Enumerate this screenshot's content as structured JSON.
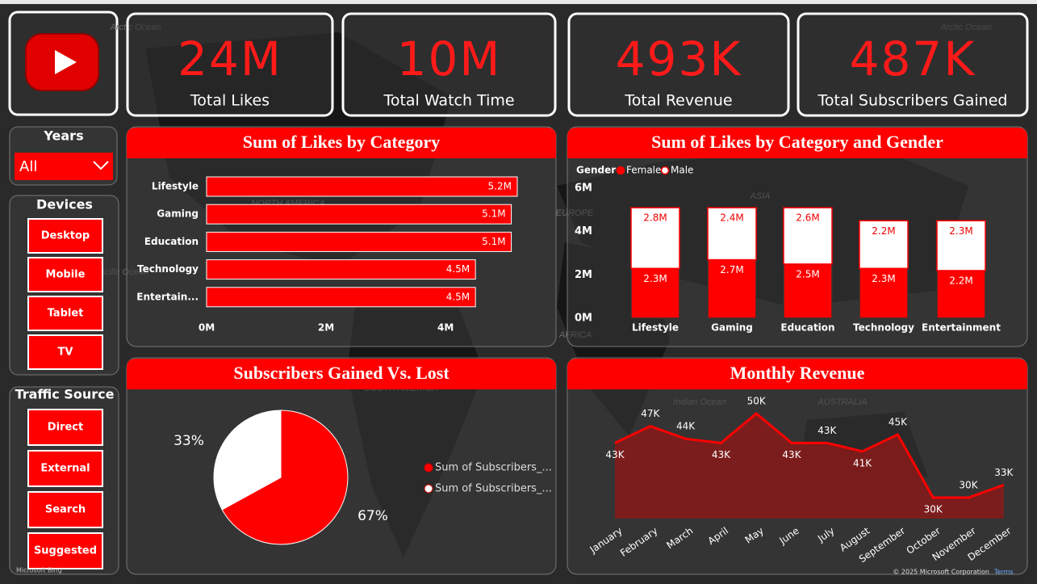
{
  "kpis": [
    {
      "value": "24M",
      "label": "Total Likes"
    },
    {
      "value": "10M",
      "label": "Total Watch Time"
    },
    {
      "value": "493K",
      "label": "Total Revenue"
    },
    {
      "value": "487K",
      "label": "Total Subscribers Gained"
    }
  ],
  "slicers": {
    "years": {
      "title": "Years",
      "selected": "All"
    },
    "devices": {
      "title": "Devices",
      "options": [
        "Desktop",
        "Mobile",
        "Tablet",
        "TV"
      ]
    },
    "traffic_source": {
      "title": "Traffic Source",
      "options": [
        "Direct",
        "External",
        "Search",
        "Suggested"
      ]
    }
  },
  "map_labels": [
    "Arctic Ocean",
    "Arctic Ocean",
    "NORTH AMERICA",
    "Pacific Ocean",
    "EUROPE",
    "ASIA",
    "AFRICA",
    "SOUTH AMERICA",
    "Indian Ocean",
    "AUSTRALIA"
  ],
  "footer": {
    "attribution": "Microsoft Bing",
    "copyright": "© 2025 Microsoft Corporation",
    "terms": "Terms"
  },
  "chart_data": [
    {
      "type": "hbar",
      "title": "Sum of Likes by Category",
      "categories": [
        "Lifestyle",
        "Gaming",
        "Education",
        "Technology",
        "Entertain..."
      ],
      "values": [
        5.2,
        5.1,
        5.1,
        4.5,
        4.5
      ],
      "value_labels": [
        "5.2M",
        "5.1M",
        "5.1M",
        "4.5M",
        "4.5M"
      ],
      "color": "#ff0000",
      "xlim": [
        0,
        5.7
      ],
      "xticks": [
        {
          "value": 0,
          "label": "0M"
        },
        {
          "value": 2,
          "label": "2M"
        },
        {
          "value": 4,
          "label": "4M"
        }
      ]
    },
    {
      "type": "stacked_bar",
      "title": "Sum of Likes by Category and Gender",
      "legend_title": "Gender",
      "categories": [
        "Lifestyle",
        "Gaming",
        "Education",
        "Technology",
        "Entertainment"
      ],
      "series": [
        {
          "name": "Female",
          "color": "#ff0000",
          "values": [
            2.3,
            2.7,
            2.5,
            2.3,
            2.2
          ],
          "value_labels": [
            "2.3M",
            "2.7M",
            "2.5M",
            "2.3M",
            "2.2M"
          ]
        },
        {
          "name": "Male",
          "color": "#ffffff",
          "values": [
            2.8,
            2.4,
            2.6,
            2.2,
            2.3
          ],
          "value_labels": [
            "2.8M",
            "2.4M",
            "2.6M",
            "2.2M",
            "2.3M"
          ]
        }
      ],
      "ylim": [
        0,
        6
      ],
      "yticks": [
        {
          "value": 0,
          "label": "0M"
        },
        {
          "value": 2,
          "label": "2M"
        },
        {
          "value": 4,
          "label": "4M"
        },
        {
          "value": 6,
          "label": "6M"
        }
      ]
    },
    {
      "type": "pie",
      "title": "Subscribers Gained Vs. Lost",
      "labels": [
        "Sum of Subscribers_...",
        "Sum of Subscribers_..."
      ],
      "values": [
        67,
        33
      ],
      "value_labels": [
        "67%",
        "33%"
      ],
      "colors": [
        "#ff0000",
        "#ffffff"
      ]
    },
    {
      "type": "area",
      "title": "Monthly Revenue",
      "categories": [
        "January",
        "February",
        "March",
        "April",
        "May",
        "June",
        "July",
        "August",
        "September",
        "October",
        "November",
        "December"
      ],
      "values": [
        43,
        47,
        44,
        43,
        50,
        43,
        43,
        41,
        45,
        30,
        30,
        33
      ],
      "value_labels": [
        "43K",
        "47K",
        "44K",
        "43K",
        "50K",
        "43K",
        "43K",
        "41K",
        "45K",
        "30K",
        "30K",
        "33K"
      ],
      "color": "#ff0000",
      "ylim": [
        25,
        55
      ]
    }
  ]
}
